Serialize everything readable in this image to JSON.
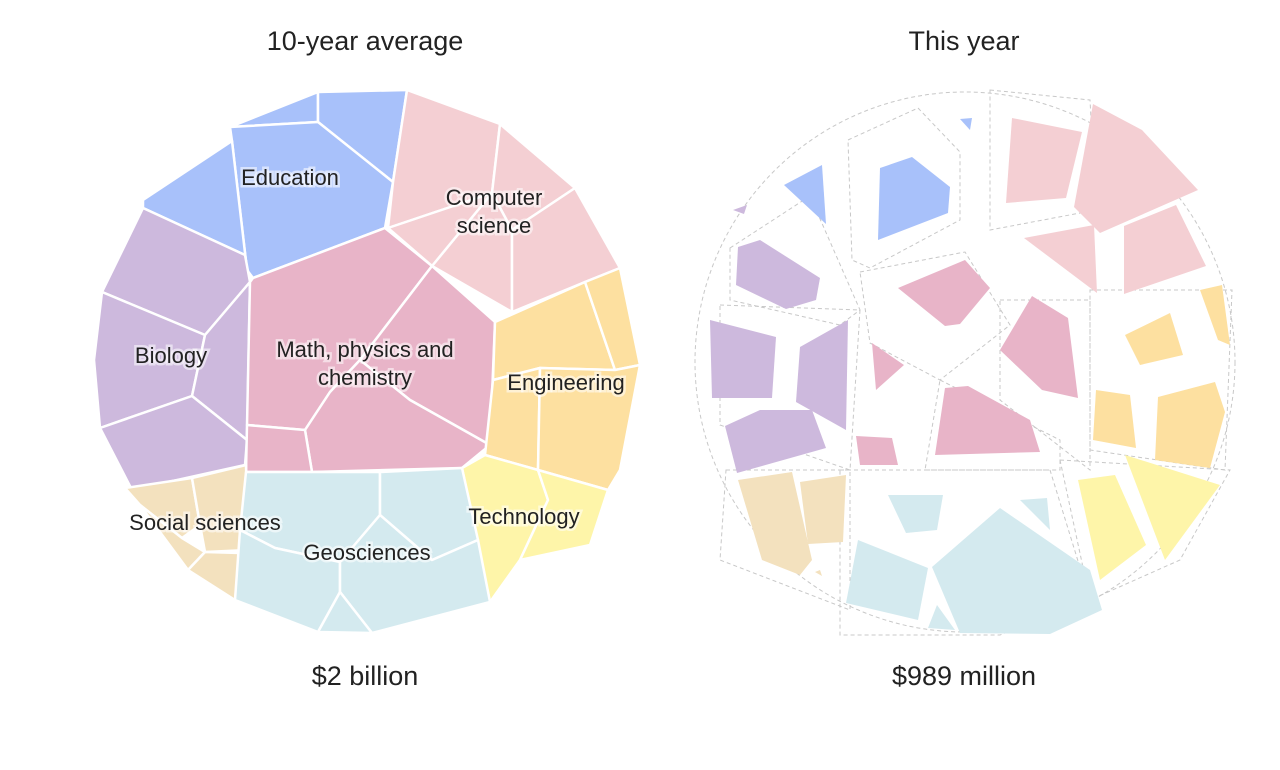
{
  "chart_data": [
    {
      "type": "voronoi-treemap",
      "title": "10-year average",
      "total_label": "$2 billion",
      "unit": "USD",
      "categories": [
        {
          "name": "Education",
          "color": "#a8c1fa",
          "label_lines": [
            "Education"
          ]
        },
        {
          "name": "Computer science",
          "color": "#f4cfd3",
          "label_lines": [
            "Computer",
            "science"
          ]
        },
        {
          "name": "Biology",
          "color": "#cdb9dd",
          "label_lines": [
            "Biology"
          ]
        },
        {
          "name": "Math, physics and chemistry",
          "color": "#e8b4c8",
          "label_lines": [
            "Math, physics and",
            "chemistry"
          ]
        },
        {
          "name": "Engineering",
          "color": "#fde0a0",
          "label_lines": [
            "Engineering"
          ]
        },
        {
          "name": "Technology",
          "color": "#fef5a9",
          "label_lines": [
            "Technology"
          ]
        },
        {
          "name": "Social sciences",
          "color": "#f3e1be",
          "label_lines": [
            "Social sciences"
          ]
        },
        {
          "name": "Geosciences",
          "color": "#d4eaef",
          "label_lines": [
            "Geosciences"
          ]
        }
      ]
    },
    {
      "type": "voronoi-treemap",
      "title": "This year",
      "total_label": "$989 million",
      "unit": "USD",
      "categories": [
        {
          "name": "Education",
          "color": "#a8c1fa"
        },
        {
          "name": "Computer science",
          "color": "#f4cfd3"
        },
        {
          "name": "Biology",
          "color": "#cdb9dd"
        },
        {
          "name": "Math, physics and chemistry",
          "color": "#e8b4c8"
        },
        {
          "name": "Engineering",
          "color": "#fde0a0"
        },
        {
          "name": "Technology",
          "color": "#fef5a9"
        },
        {
          "name": "Social sciences",
          "color": "#f3e1be"
        },
        {
          "name": "Geosciences",
          "color": "#d4eaef"
        }
      ]
    }
  ]
}
